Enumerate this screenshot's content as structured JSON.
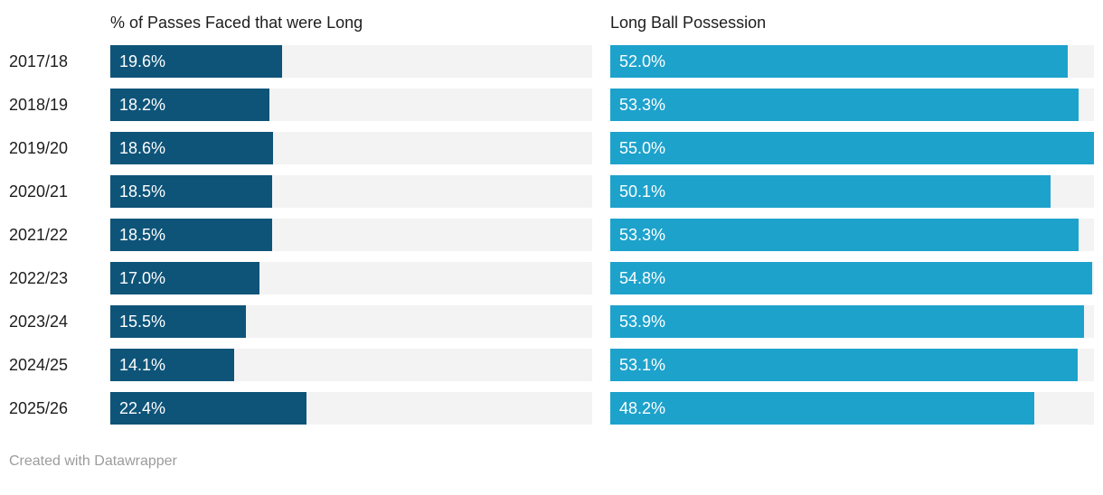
{
  "chart_data": {
    "type": "bar",
    "orientation": "horizontal",
    "grid": false,
    "xlim": [
      0,
      55.0
    ],
    "xmax_scale": 55.0,
    "categories": [
      "2017/18",
      "2018/19",
      "2019/20",
      "2020/21",
      "2021/22",
      "2022/23",
      "2023/24",
      "2024/25",
      "2025/26"
    ],
    "series": [
      {
        "name": "% of Passes Faced that were Long",
        "values": [
          19.6,
          18.2,
          18.6,
          18.5,
          18.5,
          17.0,
          15.5,
          14.1,
          22.4
        ],
        "labels": [
          "19.6%",
          "18.2%",
          "18.6%",
          "18.5%",
          "18.5%",
          "17.0%",
          "15.5%",
          "14.1%",
          "22.4%"
        ],
        "color": "#0e5479"
      },
      {
        "name": "Long Ball Possession",
        "values": [
          52.0,
          53.3,
          55.0,
          50.1,
          53.3,
          54.8,
          53.9,
          53.1,
          48.2
        ],
        "labels": [
          "52.0%",
          "53.3%",
          "55.0%",
          "50.1%",
          "53.3%",
          "54.8%",
          "53.9%",
          "53.1%",
          "48.2%"
        ],
        "color": "#1da2cc"
      }
    ]
  },
  "colors": {
    "bar_left": "#0e5479",
    "bar_right": "#1da2cc",
    "track": "#f3f3f3",
    "label_text": "#1d1d1d",
    "value_text": "#ffffff",
    "footer_text": "#9c9c9c",
    "background": "#ffffff"
  },
  "footer": {
    "attribution": "Created with Datawrapper"
  }
}
